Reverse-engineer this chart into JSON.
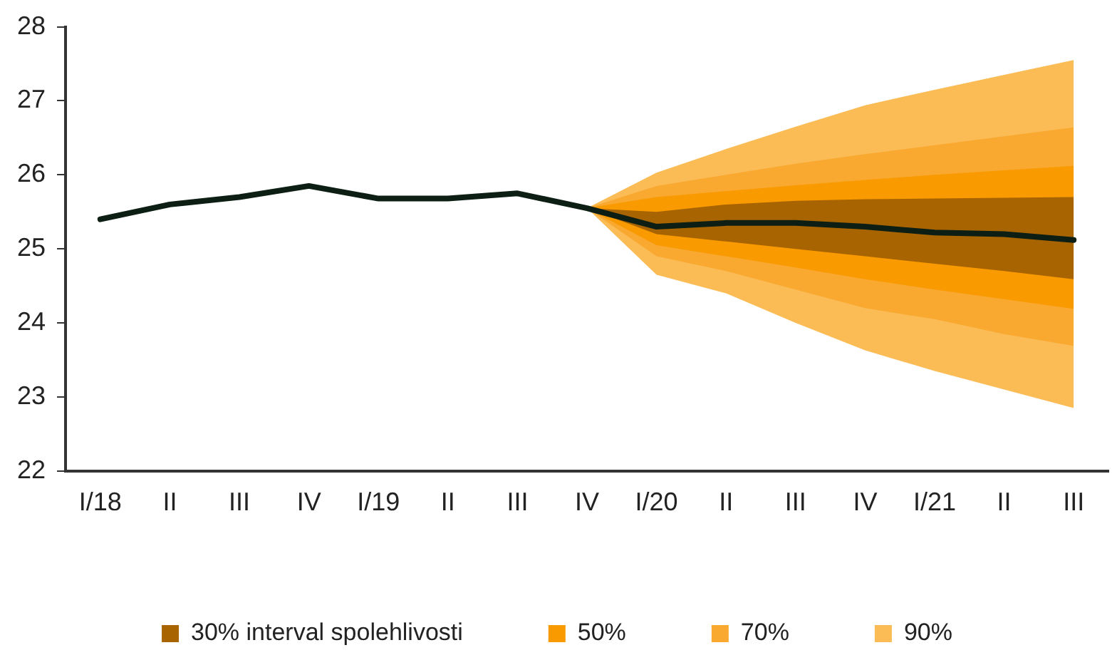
{
  "chart_data": {
    "type": "line",
    "categories": [
      "I/18",
      "II",
      "III",
      "IV",
      "I/19",
      "II",
      "III",
      "IV",
      "I/20",
      "II",
      "III",
      "IV",
      "I/21",
      "II",
      "III"
    ],
    "ylim": [
      22,
      28
    ],
    "yticks": [
      22,
      23,
      24,
      25,
      26,
      27,
      28
    ],
    "grid": false,
    "legend": "bottom",
    "series": [
      {
        "name": "90%",
        "type": "area",
        "color": "#fbbb55",
        "values": [
          null,
          null,
          null,
          null,
          null,
          null,
          null,
          null,
          null,
          null,
          null,
          null,
          null,
          null,
          null
        ],
        "lower": [
          null,
          null,
          null,
          null,
          null,
          null,
          null,
          25.55,
          24.65,
          24.4,
          24.0,
          23.63,
          23.35,
          23.1,
          22.85
        ],
        "upper": [
          null,
          null,
          null,
          null,
          null,
          null,
          null,
          25.55,
          26.03,
          26.35,
          26.65,
          26.94,
          27.15,
          27.35,
          27.55
        ]
      },
      {
        "name": "70%",
        "type": "area",
        "color": "#f9a830",
        "values": [
          null,
          null,
          null,
          null,
          null,
          null,
          null,
          null,
          null,
          null,
          null,
          null,
          null,
          null,
          null
        ],
        "lower": [
          null,
          null,
          null,
          null,
          null,
          null,
          null,
          25.55,
          24.9,
          24.7,
          24.45,
          24.2,
          24.05,
          23.85,
          23.69
        ],
        "upper": [
          null,
          null,
          null,
          null,
          null,
          null,
          null,
          25.55,
          25.85,
          26.0,
          26.15,
          26.28,
          26.4,
          26.52,
          26.64
        ]
      },
      {
        "name": "50%",
        "type": "area",
        "color": "#f89a00",
        "values": [
          null,
          null,
          null,
          null,
          null,
          null,
          null,
          null,
          null,
          null,
          null,
          null,
          null,
          null,
          null
        ],
        "lower": [
          null,
          null,
          null,
          null,
          null,
          null,
          null,
          25.55,
          25.05,
          24.9,
          24.75,
          24.59,
          24.45,
          24.32,
          24.19
        ],
        "upper": [
          null,
          null,
          null,
          null,
          null,
          null,
          null,
          25.55,
          25.7,
          25.78,
          25.86,
          25.93,
          26.0,
          26.06,
          26.12
        ]
      },
      {
        "name": "30% interval spolehlivosti",
        "type": "area",
        "color": "#a86400",
        "values": [
          null,
          null,
          null,
          null,
          null,
          null,
          null,
          null,
          null,
          null,
          null,
          null,
          null,
          null,
          null
        ],
        "lower": [
          null,
          null,
          null,
          null,
          null,
          null,
          null,
          25.55,
          25.2,
          25.1,
          25.0,
          24.9,
          24.8,
          24.7,
          24.59
        ],
        "upper": [
          null,
          null,
          null,
          null,
          null,
          null,
          null,
          25.55,
          25.5,
          25.6,
          25.65,
          25.67,
          25.68,
          25.69,
          25.7
        ]
      },
      {
        "type": "line",
        "color": "#0d1f14",
        "values": [
          25.4,
          25.6,
          25.7,
          25.85,
          25.68,
          25.68,
          25.75,
          25.55,
          25.3,
          25.35,
          25.35,
          25.3,
          25.22,
          25.2,
          25.12
        ]
      }
    ]
  }
}
